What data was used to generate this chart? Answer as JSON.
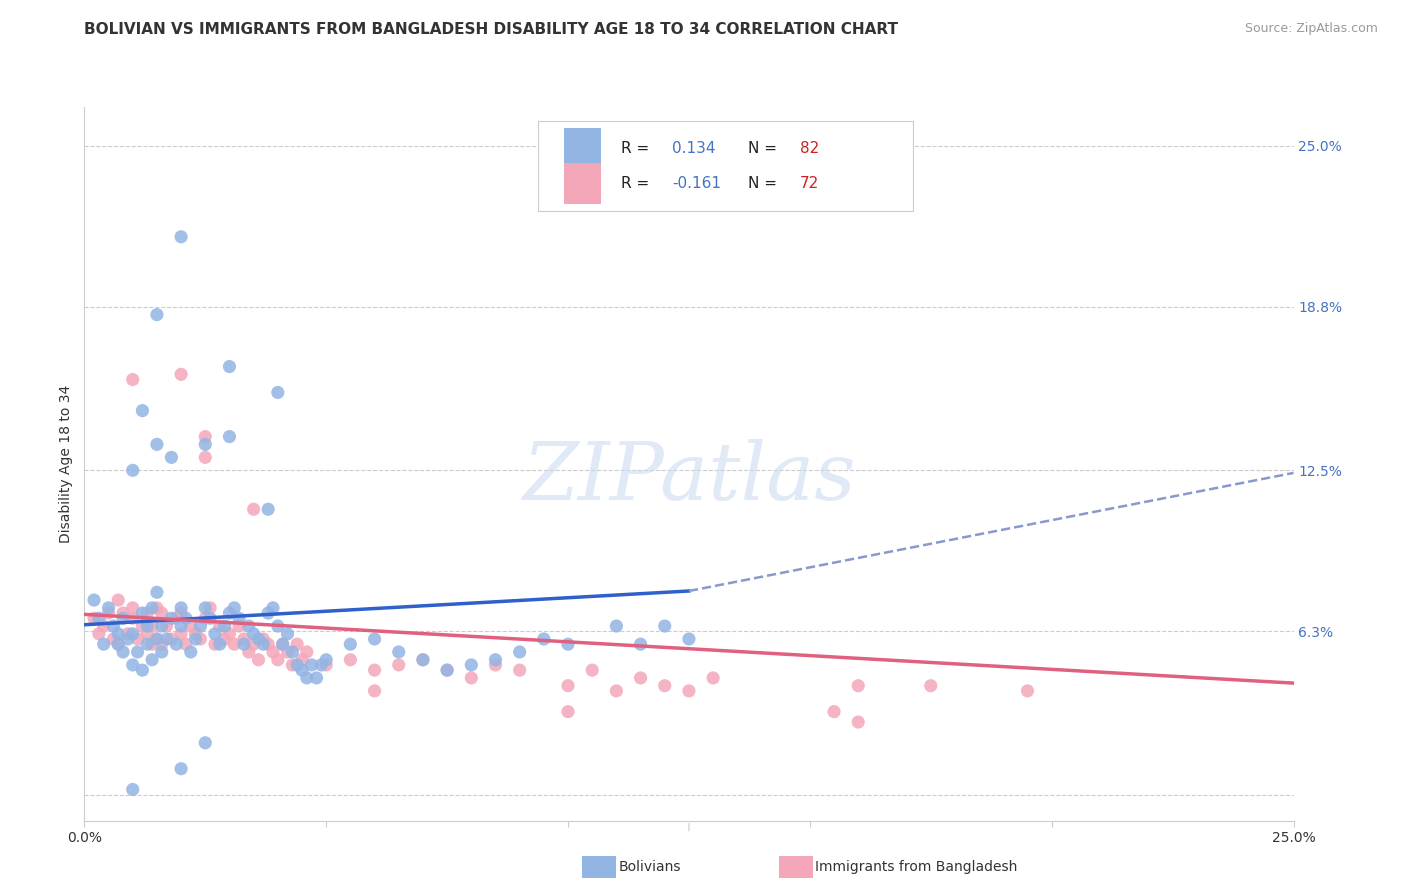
{
  "title": "BOLIVIAN VS IMMIGRANTS FROM BANGLADESH DISABILITY AGE 18 TO 34 CORRELATION CHART",
  "source": "Source: ZipAtlas.com",
  "ylabel": "Disability Age 18 to 34",
  "xlim": [
    0.0,
    0.25
  ],
  "ylim": [
    -0.01,
    0.265
  ],
  "xtick_positions": [
    0.0,
    0.05,
    0.1,
    0.15,
    0.2,
    0.25
  ],
  "xticklabels": [
    "0.0%",
    "",
    "",
    "",
    "",
    "25.0%"
  ],
  "ytick_positions": [
    0.0,
    0.063,
    0.125,
    0.188,
    0.25
  ],
  "ytick_labels": [
    "",
    "6.3%",
    "12.5%",
    "18.8%",
    "25.0%"
  ],
  "legend_bottom_labels": [
    "Bolivians",
    "Immigrants from Bangladesh"
  ],
  "watermark": "ZIPatlas",
  "blue_color": "#92b4e3",
  "pink_color": "#f4a7b9",
  "blue_line_color": "#3060cc",
  "pink_line_color": "#e06080",
  "dash_line_color": "#8899cc",
  "text_color": "#333333",
  "blue_label_color": "#4472c4",
  "red_label_color": "#cc2222",
  "background_color": "#ffffff",
  "grid_color": "#cccccc",
  "title_fontsize": 11,
  "source_fontsize": 9,
  "axis_label_fontsize": 10,
  "tick_fontsize": 10,
  "blue_scatter": [
    [
      0.002,
      0.075
    ],
    [
      0.003,
      0.068
    ],
    [
      0.004,
      0.058
    ],
    [
      0.005,
      0.072
    ],
    [
      0.006,
      0.065
    ],
    [
      0.007,
      0.058
    ],
    [
      0.007,
      0.062
    ],
    [
      0.008,
      0.055
    ],
    [
      0.008,
      0.068
    ],
    [
      0.009,
      0.06
    ],
    [
      0.01,
      0.05
    ],
    [
      0.01,
      0.062
    ],
    [
      0.011,
      0.055
    ],
    [
      0.012,
      0.048
    ],
    [
      0.012,
      0.07
    ],
    [
      0.013,
      0.058
    ],
    [
      0.013,
      0.065
    ],
    [
      0.014,
      0.052
    ],
    [
      0.014,
      0.072
    ],
    [
      0.015,
      0.06
    ],
    [
      0.015,
      0.078
    ],
    [
      0.016,
      0.055
    ],
    [
      0.016,
      0.065
    ],
    [
      0.017,
      0.06
    ],
    [
      0.018,
      0.068
    ],
    [
      0.019,
      0.058
    ],
    [
      0.02,
      0.072
    ],
    [
      0.02,
      0.065
    ],
    [
      0.021,
      0.068
    ],
    [
      0.022,
      0.055
    ],
    [
      0.023,
      0.06
    ],
    [
      0.024,
      0.065
    ],
    [
      0.025,
      0.072
    ],
    [
      0.026,
      0.068
    ],
    [
      0.027,
      0.062
    ],
    [
      0.028,
      0.058
    ],
    [
      0.029,
      0.065
    ],
    [
      0.03,
      0.07
    ],
    [
      0.031,
      0.072
    ],
    [
      0.032,
      0.068
    ],
    [
      0.033,
      0.058
    ],
    [
      0.034,
      0.065
    ],
    [
      0.035,
      0.062
    ],
    [
      0.036,
      0.06
    ],
    [
      0.037,
      0.058
    ],
    [
      0.038,
      0.07
    ],
    [
      0.039,
      0.072
    ],
    [
      0.04,
      0.065
    ],
    [
      0.041,
      0.058
    ],
    [
      0.042,
      0.062
    ],
    [
      0.043,
      0.055
    ],
    [
      0.044,
      0.05
    ],
    [
      0.045,
      0.048
    ],
    [
      0.046,
      0.045
    ],
    [
      0.047,
      0.05
    ],
    [
      0.048,
      0.045
    ],
    [
      0.049,
      0.05
    ],
    [
      0.05,
      0.052
    ],
    [
      0.055,
      0.058
    ],
    [
      0.06,
      0.06
    ],
    [
      0.065,
      0.055
    ],
    [
      0.07,
      0.052
    ],
    [
      0.075,
      0.048
    ],
    [
      0.08,
      0.05
    ],
    [
      0.085,
      0.052
    ],
    [
      0.09,
      0.055
    ],
    [
      0.095,
      0.06
    ],
    [
      0.1,
      0.058
    ],
    [
      0.11,
      0.065
    ],
    [
      0.115,
      0.058
    ],
    [
      0.12,
      0.065
    ],
    [
      0.125,
      0.06
    ],
    [
      0.01,
      0.125
    ],
    [
      0.012,
      0.148
    ],
    [
      0.015,
      0.135
    ],
    [
      0.018,
      0.13
    ],
    [
      0.025,
      0.135
    ],
    [
      0.03,
      0.138
    ],
    [
      0.038,
      0.11
    ],
    [
      0.01,
      0.002
    ],
    [
      0.02,
      0.01
    ],
    [
      0.025,
      0.02
    ],
    [
      0.03,
      0.165
    ],
    [
      0.04,
      0.155
    ],
    [
      0.015,
      0.185
    ],
    [
      0.02,
      0.215
    ]
  ],
  "pink_scatter": [
    [
      0.002,
      0.068
    ],
    [
      0.003,
      0.062
    ],
    [
      0.004,
      0.065
    ],
    [
      0.005,
      0.07
    ],
    [
      0.006,
      0.06
    ],
    [
      0.007,
      0.075
    ],
    [
      0.007,
      0.058
    ],
    [
      0.008,
      0.07
    ],
    [
      0.009,
      0.062
    ],
    [
      0.01,
      0.068
    ],
    [
      0.01,
      0.072
    ],
    [
      0.011,
      0.06
    ],
    [
      0.012,
      0.065
    ],
    [
      0.013,
      0.062
    ],
    [
      0.013,
      0.07
    ],
    [
      0.014,
      0.058
    ],
    [
      0.014,
      0.065
    ],
    [
      0.015,
      0.06
    ],
    [
      0.015,
      0.072
    ],
    [
      0.016,
      0.058
    ],
    [
      0.016,
      0.07
    ],
    [
      0.017,
      0.065
    ],
    [
      0.018,
      0.06
    ],
    [
      0.019,
      0.068
    ],
    [
      0.02,
      0.062
    ],
    [
      0.02,
      0.07
    ],
    [
      0.021,
      0.058
    ],
    [
      0.022,
      0.065
    ],
    [
      0.023,
      0.062
    ],
    [
      0.024,
      0.06
    ],
    [
      0.025,
      0.068
    ],
    [
      0.026,
      0.072
    ],
    [
      0.027,
      0.058
    ],
    [
      0.028,
      0.065
    ],
    [
      0.029,
      0.06
    ],
    [
      0.03,
      0.062
    ],
    [
      0.031,
      0.058
    ],
    [
      0.032,
      0.065
    ],
    [
      0.033,
      0.06
    ],
    [
      0.034,
      0.055
    ],
    [
      0.035,
      0.058
    ],
    [
      0.036,
      0.052
    ],
    [
      0.037,
      0.06
    ],
    [
      0.038,
      0.058
    ],
    [
      0.039,
      0.055
    ],
    [
      0.04,
      0.052
    ],
    [
      0.041,
      0.058
    ],
    [
      0.042,
      0.055
    ],
    [
      0.043,
      0.05
    ],
    [
      0.044,
      0.058
    ],
    [
      0.045,
      0.052
    ],
    [
      0.046,
      0.055
    ],
    [
      0.05,
      0.05
    ],
    [
      0.055,
      0.052
    ],
    [
      0.06,
      0.048
    ],
    [
      0.065,
      0.05
    ],
    [
      0.07,
      0.052
    ],
    [
      0.075,
      0.048
    ],
    [
      0.08,
      0.045
    ],
    [
      0.085,
      0.05
    ],
    [
      0.09,
      0.048
    ],
    [
      0.1,
      0.042
    ],
    [
      0.105,
      0.048
    ],
    [
      0.11,
      0.04
    ],
    [
      0.115,
      0.045
    ],
    [
      0.12,
      0.042
    ],
    [
      0.125,
      0.04
    ],
    [
      0.13,
      0.045
    ],
    [
      0.16,
      0.042
    ],
    [
      0.175,
      0.042
    ],
    [
      0.195,
      0.04
    ],
    [
      0.01,
      0.16
    ],
    [
      0.025,
      0.138
    ],
    [
      0.025,
      0.13
    ],
    [
      0.035,
      0.11
    ],
    [
      0.06,
      0.04
    ],
    [
      0.1,
      0.032
    ],
    [
      0.155,
      0.032
    ],
    [
      0.16,
      0.028
    ],
    [
      0.02,
      0.162
    ]
  ],
  "blue_line_x": [
    0.0,
    0.125
  ],
  "blue_line_y": [
    0.0655,
    0.0785
  ],
  "pink_line_x": [
    0.0,
    0.25
  ],
  "pink_line_y": [
    0.0695,
    0.043
  ],
  "dash_line_x": [
    0.125,
    0.25
  ],
  "dash_line_y": [
    0.0785,
    0.124
  ]
}
